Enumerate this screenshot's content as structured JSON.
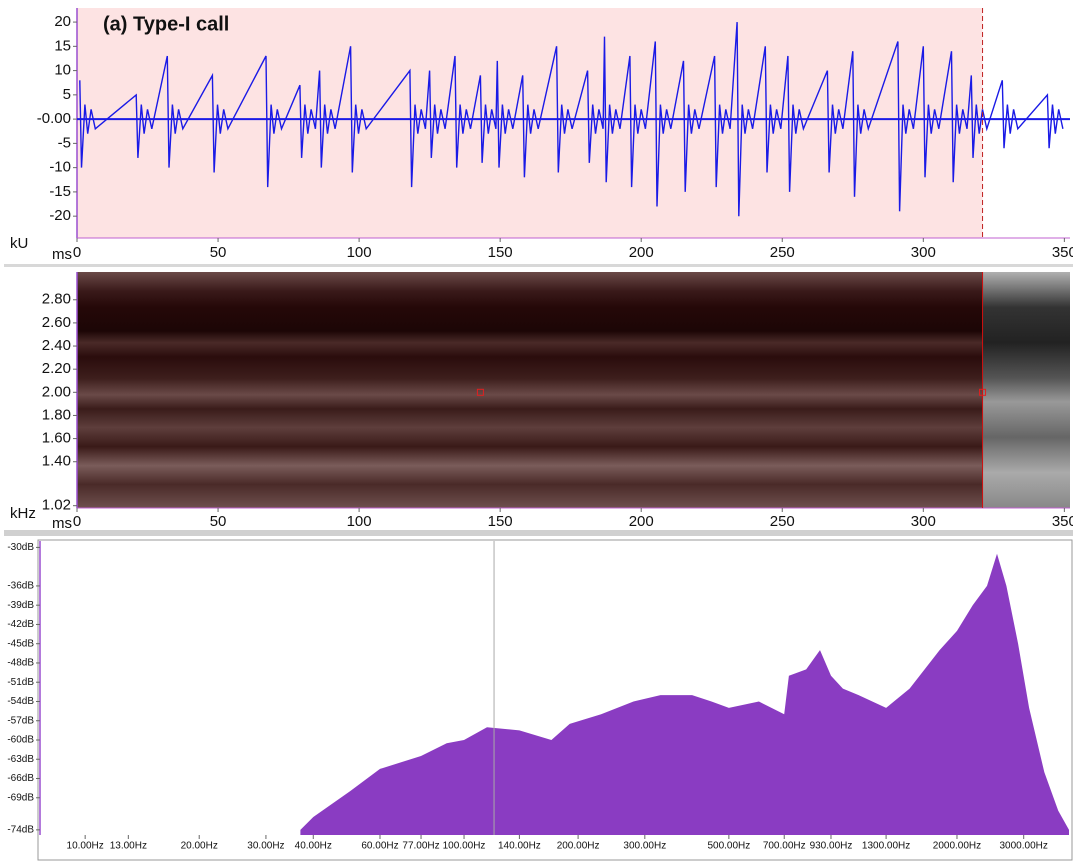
{
  "chart_data": [
    {
      "type": "line",
      "title": "(a) Type-I call",
      "y_unit": "kU",
      "x_unit": "ms",
      "xlim": [
        0,
        352
      ],
      "xticks": [
        0,
        50,
        100,
        150,
        200,
        250,
        300,
        350
      ],
      "ylim": [
        -24.5,
        22.9
      ],
      "yticks": [
        20,
        15,
        10,
        5,
        {
          "value": 0,
          "label": "-0.00"
        },
        -5,
        -10,
        -15,
        -20
      ],
      "color": "#1a1ae6",
      "selection": [
        0,
        321
      ],
      "selection_color": "#fde3e3",
      "x": [
        1,
        1.6,
        2.8,
        3.8,
        5,
        6.5,
        21,
        21.6,
        22.8,
        23.8,
        25,
        26.5,
        32,
        32.6,
        33.8,
        34.8,
        36,
        37.5,
        48,
        48.6,
        49.8,
        50.8,
        52,
        53.5,
        67,
        67.6,
        68.8,
        69.8,
        71,
        72.5,
        79,
        79.6,
        80.8,
        81.8,
        83,
        84.5,
        86,
        86.6,
        87.8,
        88.8,
        90,
        91.5,
        97,
        97.6,
        98.8,
        99.8,
        101,
        102.5,
        118,
        118.6,
        119.8,
        120.8,
        122,
        123.5,
        125,
        125.6,
        126.8,
        127.8,
        129,
        130.5,
        134,
        134.6,
        135.8,
        136.8,
        138,
        139.5,
        143,
        143.6,
        144.8,
        145.8,
        147,
        148.5,
        149,
        149.6,
        150.8,
        151.8,
        153,
        154.5,
        158,
        158.6,
        159.8,
        160.8,
        162,
        163.5,
        170,
        170.6,
        171.8,
        172.8,
        174,
        175.5,
        181,
        181.6,
        182.8,
        183.8,
        185,
        186.5,
        187,
        187.6,
        188.8,
        189.8,
        191,
        192.5,
        196,
        196.6,
        197.8,
        198.8,
        200,
        201.5,
        205,
        205.6,
        206.8,
        207.8,
        209,
        210.5,
        215,
        215.6,
        216.8,
        217.8,
        219,
        220.5,
        226,
        226.6,
        227.8,
        228.8,
        230,
        231.5,
        234,
        234.6,
        235.8,
        236.8,
        238,
        239.5,
        244,
        244.6,
        245.8,
        246.8,
        248,
        249.5,
        252,
        252.6,
        253.8,
        254.8,
        256,
        257.5,
        266,
        266.6,
        267.8,
        268.8,
        270,
        271.5,
        275,
        275.6,
        276.8,
        277.8,
        279,
        280.5,
        291,
        291.6,
        292.8,
        293.8,
        295,
        296.5,
        300,
        300.6,
        301.8,
        302.8,
        304,
        305.5,
        310,
        310.6,
        311.8,
        312.8,
        314,
        315.5,
        317,
        317.6,
        318.8,
        319.8,
        321,
        322.5,
        328,
        328.6,
        329.8,
        330.8,
        332,
        333.5,
        344,
        344.6,
        345.8,
        346.8,
        348,
        349.5
      ],
      "values": [
        8,
        -10,
        3,
        -3,
        2,
        -2,
        5,
        -8,
        3,
        -3,
        2,
        -2,
        13,
        -10,
        3,
        -3,
        2,
        -2,
        9,
        -11,
        3,
        -3,
        2,
        -2,
        13,
        -14,
        3,
        -3,
        2,
        -2,
        7,
        -8,
        3,
        -3,
        2,
        -2,
        10,
        -10,
        3,
        -3,
        2,
        -2,
        15,
        -11,
        3,
        -3,
        2,
        -2,
        10,
        -14,
        3,
        -3,
        2,
        -2,
        10,
        -8,
        3,
        -3,
        2,
        -2,
        13,
        -10,
        3,
        -3,
        2,
        -2,
        9,
        -9,
        3,
        -3,
        2,
        -2,
        12,
        -10,
        3,
        -3,
        2,
        -2,
        9,
        -12,
        3,
        -3,
        2,
        -2,
        15,
        -11,
        3,
        -3,
        2,
        -2,
        10,
        -9,
        3,
        -3,
        2,
        -2,
        17,
        -13,
        3,
        -3,
        2,
        -2,
        13,
        -14,
        3,
        -3,
        2,
        -2,
        16,
        -18,
        3,
        -3,
        2,
        -2,
        12,
        -15,
        3,
        -3,
        2,
        -2,
        13,
        -14,
        3,
        -3,
        2,
        -2,
        20,
        -20,
        3,
        -3,
        2,
        -2,
        15,
        -11,
        3,
        -3,
        2,
        -2,
        13,
        -15,
        3,
        -3,
        2,
        -2,
        10,
        -11,
        3,
        -3,
        2,
        -2,
        14,
        -16,
        3,
        -3,
        2,
        -2,
        16,
        -19,
        3,
        -3,
        2,
        -2,
        15,
        -12,
        3,
        -3,
        2,
        -2,
        14,
        -13,
        3,
        -3,
        2,
        -2,
        9,
        -8,
        3,
        -3,
        2,
        -2,
        8,
        -6,
        3,
        -3,
        2,
        -2,
        5,
        -6,
        3,
        -3,
        2,
        -2
      ]
    },
    {
      "type": "spectrogram",
      "y_unit": "kHz",
      "x_unit": "ms",
      "xlim": [
        0,
        352
      ],
      "xticks": [
        0,
        50,
        100,
        150,
        200,
        250,
        300,
        350
      ],
      "ylim": [
        1.0,
        3.04
      ],
      "yticks": [
        {
          "value": 2.8,
          "label": "2.80"
        },
        {
          "value": 2.6,
          "label": "2.60"
        },
        {
          "value": 2.4,
          "label": "2.40"
        },
        {
          "value": 2.2,
          "label": "2.20"
        },
        {
          "value": 2,
          "label": "2.00"
        },
        {
          "value": 1.8,
          "label": "1.80"
        },
        {
          "value": 1.6,
          "label": "1.60"
        },
        {
          "value": 1.4,
          "label": "1.40"
        },
        1.02
      ],
      "cursor_x": 321,
      "markers": [
        [
          143,
          2
        ],
        [
          321,
          2
        ]
      ]
    },
    {
      "type": "area",
      "log_x": true,
      "color": "#8a3cc2",
      "xlim": [
        7.6,
        3975
      ],
      "ylim": [
        -74.8,
        -29
      ],
      "xticks": [
        {
          "value": 10,
          "label": "10.00Hz"
        },
        {
          "value": 13,
          "label": "13.00Hz"
        },
        {
          "value": 20,
          "label": "20.00Hz"
        },
        {
          "value": 30,
          "label": "30.00Hz"
        },
        {
          "value": 40,
          "label": "40.00Hz"
        },
        {
          "value": 60,
          "label": "60.00Hz"
        },
        {
          "value": 77,
          "label": "77.00Hz"
        },
        {
          "value": 100,
          "label": "100.00Hz"
        },
        {
          "value": 140,
          "label": "140.00Hz"
        },
        {
          "value": 200,
          "label": "200.00Hz"
        },
        {
          "value": 300,
          "label": "300.00Hz"
        },
        {
          "value": 500,
          "label": "500.00Hz"
        },
        {
          "value": 700,
          "label": "700.00Hz"
        },
        {
          "value": 930,
          "label": "930.00Hz"
        },
        {
          "value": 1300,
          "label": "1300.00Hz"
        },
        {
          "value": 2000,
          "label": "2000.00Hz"
        },
        {
          "value": 3000,
          "label": "3000.00Hz"
        }
      ],
      "yticks": [
        {
          "value": -30,
          "label": "-30dB"
        },
        {
          "value": -36,
          "label": "-36dB"
        },
        {
          "value": -39,
          "label": "-39dB"
        },
        {
          "value": -42,
          "label": "-42dB"
        },
        {
          "value": -45,
          "label": "-45dB"
        },
        {
          "value": -48,
          "label": "-48dB"
        },
        {
          "value": -51,
          "label": "-51dB"
        },
        {
          "value": -54,
          "label": "-54dB"
        },
        {
          "value": -57,
          "label": "-57dB"
        },
        {
          "value": -60,
          "label": "-60dB"
        },
        {
          "value": -63,
          "label": "-63dB"
        },
        {
          "value": -66,
          "label": "-66dB"
        },
        {
          "value": -69,
          "label": "-69dB"
        },
        {
          "value": -74,
          "label": "-74dB"
        }
      ],
      "cursor_x": 120,
      "x": [
        37,
        40,
        50,
        60,
        77,
        90,
        100,
        115,
        140,
        170,
        190,
        230,
        280,
        330,
        400,
        450,
        500,
        600,
        700,
        720,
        800,
        870,
        930,
        1000,
        1100,
        1300,
        1500,
        1800,
        2000,
        2200,
        2400,
        2550,
        2700,
        2900,
        3100,
        3400,
        3700,
        3950
      ],
      "values": [
        -74,
        -72,
        -68,
        -64.5,
        -62.5,
        -60.5,
        -60,
        -58,
        -58.5,
        -60,
        -57.5,
        -56,
        -54,
        -53,
        -53,
        -54,
        -55,
        -54,
        -56,
        -50,
        -49,
        -46,
        -50,
        -52,
        -53,
        -55,
        -52,
        -46,
        -43,
        -39,
        -36,
        -31,
        -36,
        -45,
        -55,
        -65,
        -71,
        -74
      ]
    }
  ]
}
